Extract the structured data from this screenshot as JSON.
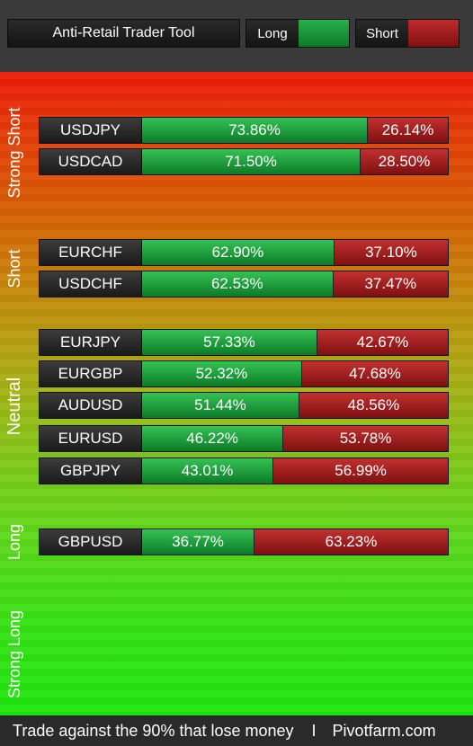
{
  "header": {
    "title": "Anti-Retail Trader Tool",
    "legend_long_label": "Long",
    "legend_short_label": "Short"
  },
  "zones": {
    "strong_short": "Strong Short",
    "short": "Short",
    "neutral": "Neutral",
    "long": "Long",
    "strong_long": "Strong Long"
  },
  "rows": [
    {
      "pair": "USDJPY",
      "long": 73.86,
      "short": 26.14,
      "long_label": "73.86%",
      "short_label": "26.14%"
    },
    {
      "pair": "USDCAD",
      "long": 71.5,
      "short": 28.5,
      "long_label": "71.50%",
      "short_label": "28.50%"
    },
    {
      "pair": "EURCHF",
      "long": 62.9,
      "short": 37.1,
      "long_label": "62.90%",
      "short_label": "37.10%"
    },
    {
      "pair": "USDCHF",
      "long": 62.53,
      "short": 37.47,
      "long_label": "62.53%",
      "short_label": "37.47%"
    },
    {
      "pair": "EURJPY",
      "long": 57.33,
      "short": 42.67,
      "long_label": "57.33%",
      "short_label": "42.67%"
    },
    {
      "pair": "EURGBP",
      "long": 52.32,
      "short": 47.68,
      "long_label": "52.32%",
      "short_label": "47.68%"
    },
    {
      "pair": "AUDUSD",
      "long": 51.44,
      "short": 48.56,
      "long_label": "51.44%",
      "short_label": "48.56%"
    },
    {
      "pair": "EURUSD",
      "long": 46.22,
      "short": 53.78,
      "long_label": "46.22%",
      "short_label": "53.78%"
    },
    {
      "pair": "GBPJPY",
      "long": 43.01,
      "short": 56.99,
      "long_label": "43.01%",
      "short_label": "56.99%"
    },
    {
      "pair": "GBPUSD",
      "long": 36.77,
      "short": 63.23,
      "long_label": "36.77%",
      "short_label": "63.23%"
    }
  ],
  "footer": {
    "tagline": "Trade against the 90% that lose money",
    "separator": "I",
    "site": "Pivotfarm.com"
  },
  "colors": {
    "long": "#1a9a3a",
    "short": "#a01c1c",
    "top_gradient": "#ee1a08",
    "bottom_gradient": "#1ee60e"
  }
}
